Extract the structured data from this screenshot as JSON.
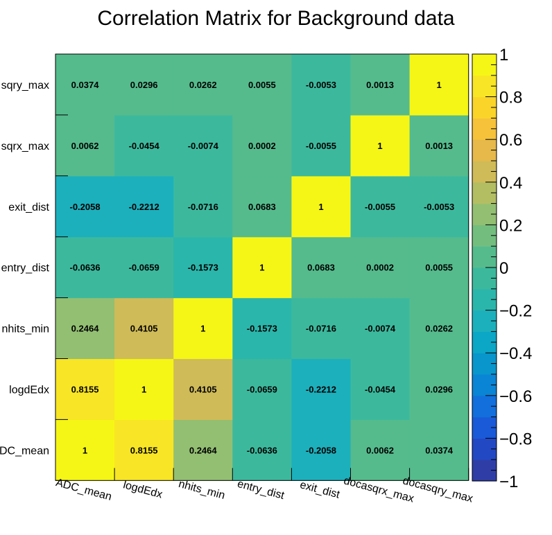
{
  "chart_data": {
    "type": "heatmap",
    "title": "Correlation Matrix for Background data",
    "x_categories": [
      "ADC_mean",
      "logdEdx",
      "nhits_min",
      "entry_dist",
      "exit_dist",
      "docasqrx_max",
      "docasqry_max"
    ],
    "y_categories": [
      "ADC_mean",
      "logdEdx",
      "nhits_min",
      "entry_dist",
      "exit_dist",
      "docasqrx_max",
      "docasqry_max"
    ],
    "y_tick_labels": [
      "DC_mean",
      "logdEdx",
      "nhits_min",
      "entry_dist",
      "exit_dist",
      "sqrx_max",
      "sqry_max"
    ],
    "values": [
      [
        1,
        0.8155,
        0.2464,
        -0.0636,
        -0.2058,
        0.0062,
        0.0374
      ],
      [
        0.8155,
        1,
        0.4105,
        -0.0659,
        -0.2212,
        -0.0454,
        0.0296
      ],
      [
        0.2464,
        0.4105,
        1,
        -0.1573,
        -0.0716,
        -0.0074,
        0.0262
      ],
      [
        -0.0636,
        -0.0659,
        -0.1573,
        1,
        0.0683,
        0.0002,
        0.0055
      ],
      [
        -0.2058,
        -0.2212,
        -0.0716,
        0.0683,
        1,
        -0.0055,
        -0.0053
      ],
      [
        0.0062,
        -0.0454,
        -0.0074,
        0.0002,
        -0.0055,
        1,
        0.0013
      ],
      [
        0.0374,
        0.0296,
        0.0262,
        0.0055,
        -0.0053,
        0.0013,
        1
      ]
    ],
    "zlim": [
      -1,
      1
    ],
    "colorbar_ticks": [
      "1",
      "0.8",
      "0.6",
      "0.4",
      "0.2",
      "0",
      "−0.2",
      "−0.4",
      "−0.6",
      "−0.8",
      "−1"
    ],
    "colorbar_tick_values": [
      1,
      0.8,
      0.6,
      0.4,
      0.2,
      0,
      -0.2,
      -0.4,
      -0.6,
      -0.8,
      -1
    ],
    "palette": [
      "#2f3ea7",
      "#2348c4",
      "#1a5ad8",
      "#126fdc",
      "#0a84d5",
      "#0896cc",
      "#0ca6c7",
      "#1cb0bc",
      "#2bb6ab",
      "#3cb99d",
      "#55bb8d",
      "#73be7f",
      "#93bf72",
      "#b3be63",
      "#cfbb57",
      "#e6b94a",
      "#f6c23a",
      "#fbd42a",
      "#f8e525",
      "#f6f616"
    ]
  }
}
